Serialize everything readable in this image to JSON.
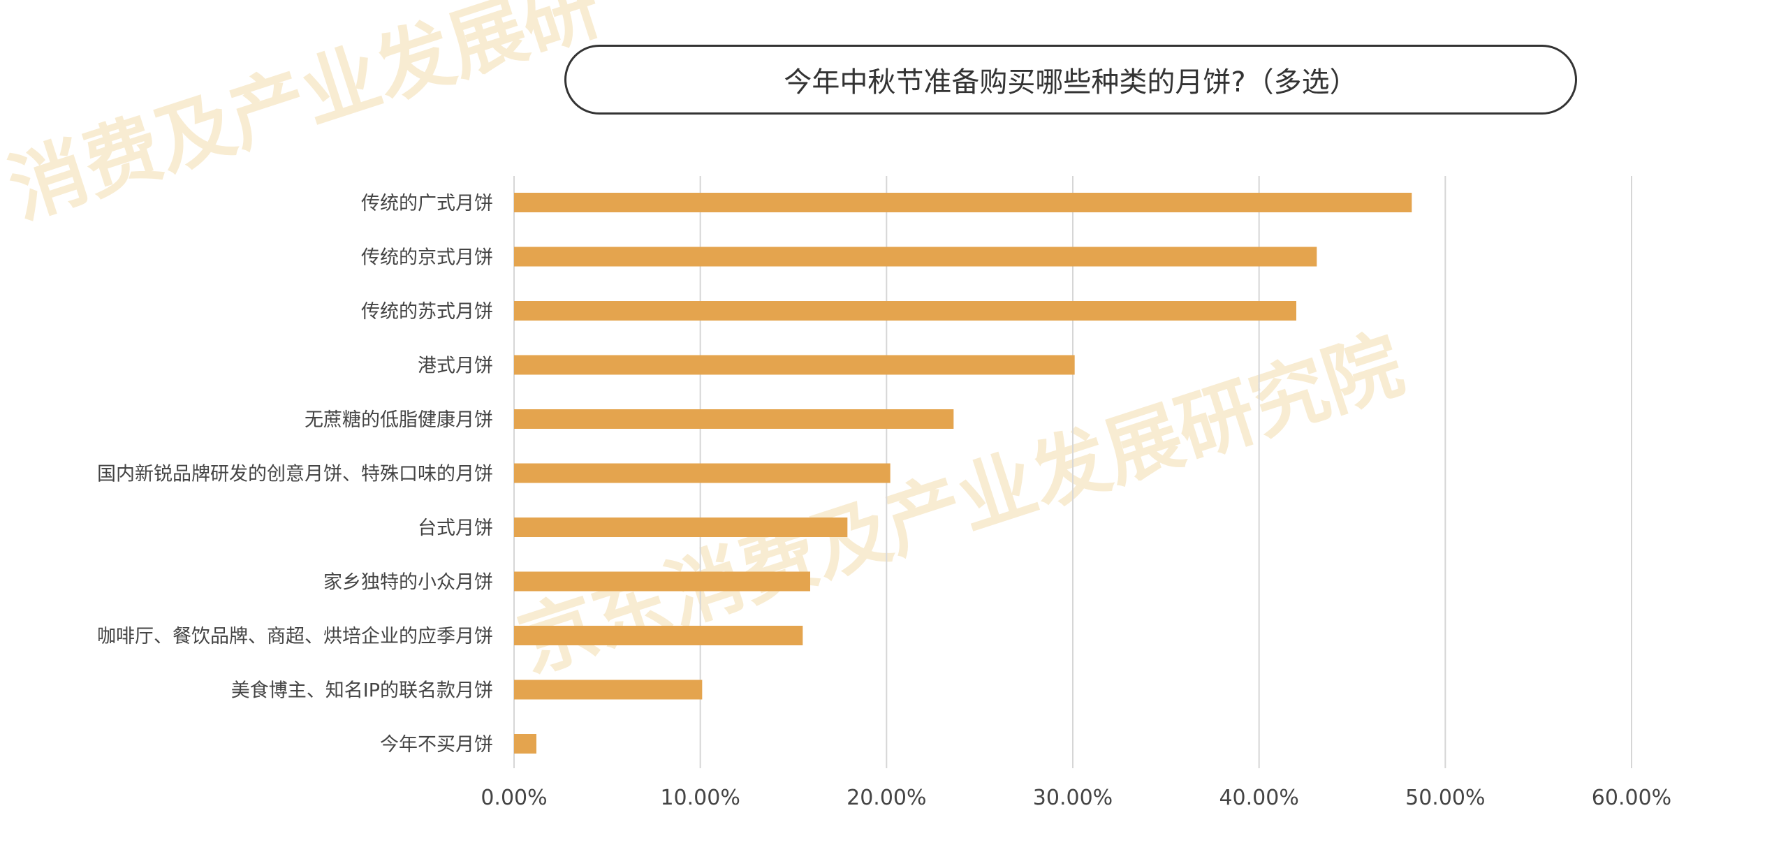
{
  "watermarks": [
    "消费及产业发展研",
    "京东消费及产业发展研究院"
  ],
  "colors": {
    "bar": "#e4a44e",
    "grid": "#d6d6d6",
    "text": "#444444"
  },
  "chart_data": {
    "type": "bar",
    "orientation": "horizontal",
    "title": "今年中秋节准备购买哪些种类的月饼?（多选）",
    "xlabel": "",
    "ylabel": "",
    "xlim": [
      0,
      60
    ],
    "x_ticks": [
      "0.00%",
      "10.00%",
      "20.00%",
      "30.00%",
      "40.00%",
      "50.00%",
      "60.00%"
    ],
    "grid": true,
    "categories": [
      "传统的广式月饼",
      "传统的京式月饼",
      "传统的苏式月饼",
      "港式月饼",
      "无蔗糖的低脂健康月饼",
      "国内新锐品牌研发的创意月饼、特殊口味的月饼",
      "台式月饼",
      "家乡独特的小众月饼",
      "咖啡厅、餐饮品牌、商超、烘培企业的应季月饼",
      "美食博主、知名IP的联名款月饼",
      "今年不买月饼"
    ],
    "values": [
      48.2,
      43.1,
      42.0,
      30.1,
      23.6,
      20.2,
      17.9,
      15.9,
      15.5,
      10.1,
      1.2
    ]
  }
}
